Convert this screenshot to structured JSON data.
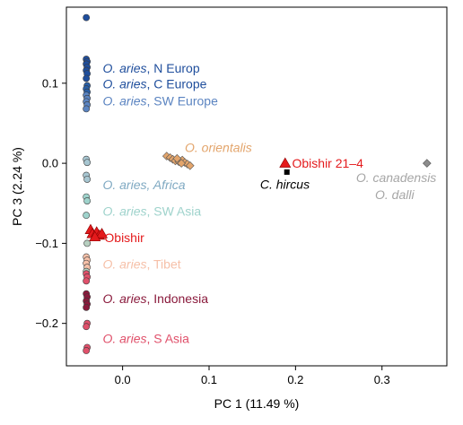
{
  "chart_data": {
    "type": "scatter",
    "title": "",
    "xlabel": "PC 1 (11.49 %)",
    "ylabel": "PC 3 (2.24 %)",
    "xlim": [
      -0.065,
      0.375
    ],
    "ylim": [
      -0.253,
      0.195
    ],
    "xticks": [
      0.0,
      0.1,
      0.2,
      0.3
    ],
    "xtick_labels": [
      "0.0",
      "0.1",
      "0.2",
      "0.3"
    ],
    "yticks": [
      0.1,
      0.0,
      -0.1,
      -0.2
    ],
    "ytick_labels": [
      "0.1",
      "0.0",
      "−0.1",
      "−0.2"
    ],
    "grid": false,
    "legend": "inline labels next to point groups",
    "series": [
      {
        "group": "n_europe",
        "color": "#1f4e9c",
        "marker": "circle",
        "points": [
          [
            -0.042,
            0.182
          ],
          [
            -0.042,
            0.13
          ],
          [
            -0.041,
            0.127
          ],
          [
            -0.042,
            0.124
          ],
          [
            -0.041,
            0.12
          ],
          [
            -0.042,
            0.116
          ],
          [
            -0.041,
            0.112
          ],
          [
            -0.042,
            0.106
          ]
        ]
      },
      {
        "group": "c_europe",
        "color": "#2a5fa6",
        "marker": "circle",
        "points": [
          [
            -0.041,
            0.097
          ],
          [
            -0.042,
            0.093
          ],
          [
            -0.041,
            0.089
          ]
        ]
      },
      {
        "group": "sw_europe",
        "color": "#5b84c1",
        "marker": "circle",
        "points": [
          [
            -0.042,
            0.085
          ],
          [
            -0.041,
            0.081
          ],
          [
            -0.042,
            0.077
          ],
          [
            -0.041,
            0.073
          ],
          [
            -0.042,
            0.068
          ]
        ]
      },
      {
        "group": "orientalis",
        "color": "#e3a56c",
        "marker": "diamond",
        "points": [
          [
            0.051,
            0.009
          ],
          [
            0.055,
            0.007
          ],
          [
            0.058,
            0.005
          ],
          [
            0.061,
            0.003
          ],
          [
            0.065,
            0.002
          ],
          [
            0.069,
            0.004
          ],
          [
            0.072,
            0.001
          ],
          [
            0.075,
            -0.001
          ],
          [
            0.078,
            -0.003
          ],
          [
            0.068,
            0.0
          ],
          [
            0.063,
            0.006
          ]
        ]
      },
      {
        "group": "africa",
        "color": "#a7c6d1",
        "marker": "circle",
        "points": [
          [
            -0.042,
            0.005
          ],
          [
            -0.041,
            0.001
          ],
          [
            -0.042,
            -0.015
          ],
          [
            -0.041,
            -0.02
          ]
        ]
      },
      {
        "group": "sw_asia",
        "color": "#9fd3cc",
        "marker": "circle",
        "points": [
          [
            -0.042,
            -0.042
          ],
          [
            -0.041,
            -0.047
          ],
          [
            -0.042,
            -0.065
          ]
        ]
      },
      {
        "group": "tibet",
        "color": "#f6c0a8",
        "marker": "circle",
        "points": [
          [
            -0.042,
            -0.117
          ],
          [
            -0.041,
            -0.121
          ],
          [
            -0.042,
            -0.125
          ],
          [
            -0.041,
            -0.13
          ]
        ]
      },
      {
        "group": "tibet_extra",
        "color": "#b7cfc0",
        "marker": "circle",
        "points": [
          [
            -0.042,
            -0.135
          ],
          [
            -0.041,
            -0.1
          ]
        ]
      },
      {
        "group": "indonesia",
        "color": "#8a1a3c",
        "marker": "circle",
        "points": [
          [
            -0.042,
            -0.163
          ],
          [
            -0.041,
            -0.167
          ],
          [
            -0.042,
            -0.172
          ],
          [
            -0.041,
            -0.176
          ],
          [
            -0.042,
            -0.18
          ]
        ]
      },
      {
        "group": "s_asia",
        "color": "#e0516b",
        "marker": "circle",
        "points": [
          [
            -0.042,
            -0.138
          ],
          [
            -0.041,
            -0.142
          ],
          [
            -0.042,
            -0.147
          ],
          [
            -0.041,
            -0.2
          ],
          [
            -0.042,
            -0.204
          ],
          [
            -0.041,
            -0.23
          ],
          [
            -0.042,
            -0.234
          ]
        ]
      },
      {
        "group": "obishir",
        "color": "#e41a1c",
        "marker": "triangle",
        "points": [
          [
            -0.037,
            -0.083
          ],
          [
            -0.035,
            -0.088
          ],
          [
            -0.03,
            -0.086
          ],
          [
            -0.027,
            -0.09
          ],
          [
            -0.024,
            -0.088
          ],
          [
            -0.032,
            -0.092
          ]
        ]
      },
      {
        "group": "obishir_21_4",
        "color": "#e41a1c",
        "marker": "triangle",
        "points": [
          [
            0.188,
            0.0
          ]
        ]
      },
      {
        "group": "c_hircus",
        "color": "#000000",
        "marker": "square",
        "points": [
          [
            0.19,
            -0.011
          ]
        ]
      },
      {
        "group": "canadensis_dalli",
        "color": "#8c8c8c",
        "marker": "diamond",
        "points": [
          [
            0.352,
            0.0
          ]
        ]
      }
    ],
    "labels": [
      {
        "name": "lbl-n-europe",
        "parts": [
          [
            "O. aries",
            true
          ],
          [
            ", N Europ",
            false
          ]
        ],
        "color": "#1f4e9c",
        "x": -0.023,
        "y": 0.119
      },
      {
        "name": "lbl-c-europe",
        "parts": [
          [
            "O. aries",
            true
          ],
          [
            ", C Europe",
            false
          ]
        ],
        "color": "#1f4e9c",
        "x": -0.023,
        "y": 0.099
      },
      {
        "name": "lbl-sw-europe",
        "parts": [
          [
            "O. aries",
            true
          ],
          [
            ", SW Europe",
            false
          ]
        ],
        "color": "#5b84c1",
        "x": -0.023,
        "y": 0.078
      },
      {
        "name": "lbl-orientalis",
        "parts": [
          [
            "O. orientalis",
            true
          ]
        ],
        "color": "#e3a56c",
        "x": 0.072,
        "y": 0.02
      },
      {
        "name": "lbl-obishir-21-4",
        "parts": [
          [
            "Obishir 21–4",
            false
          ]
        ],
        "color": "#e41a1c",
        "x": 0.196,
        "y": 0.0
      },
      {
        "name": "lbl-c-hircus",
        "parts": [
          [
            "C. hircus",
            true
          ]
        ],
        "color": "#000000",
        "x": 0.159,
        "y": -0.026
      },
      {
        "name": "lbl-canadensis",
        "parts": [
          [
            "O. canadensis",
            true
          ]
        ],
        "color": "#a6a6a6",
        "x": 0.27,
        "y": -0.018
      },
      {
        "name": "lbl-dalli",
        "parts": [
          [
            "O. dalli",
            true
          ]
        ],
        "color": "#a6a6a6",
        "x": 0.292,
        "y": -0.039
      },
      {
        "name": "lbl-africa",
        "parts": [
          [
            "O. aries",
            true
          ],
          [
            ", Africa",
            true
          ]
        ],
        "color": "#7fa9c2",
        "x": -0.023,
        "y": -0.027
      },
      {
        "name": "lbl-sw-asia",
        "parts": [
          [
            "O. aries",
            true
          ],
          [
            ", SW Asia",
            false
          ]
        ],
        "color": "#9fd3cc",
        "x": -0.023,
        "y": -0.06
      },
      {
        "name": "lbl-obishir",
        "parts": [
          [
            "Obishir",
            false
          ]
        ],
        "color": "#e41a1c",
        "x": -0.021,
        "y": -0.093
      },
      {
        "name": "lbl-tibet",
        "parts": [
          [
            "O. aries",
            true
          ],
          [
            ", Tibet",
            false
          ]
        ],
        "color": "#f6c0a8",
        "x": -0.023,
        "y": -0.126
      },
      {
        "name": "lbl-indonesia",
        "parts": [
          [
            "O. aries",
            true
          ],
          [
            ", Indonesia",
            false
          ]
        ],
        "color": "#8a1a3c",
        "x": -0.023,
        "y": -0.169
      },
      {
        "name": "lbl-s-asia",
        "parts": [
          [
            "O. aries",
            true
          ],
          [
            ", S Asia",
            false
          ]
        ],
        "color": "#e0516b",
        "x": -0.023,
        "y": -0.219
      }
    ]
  }
}
